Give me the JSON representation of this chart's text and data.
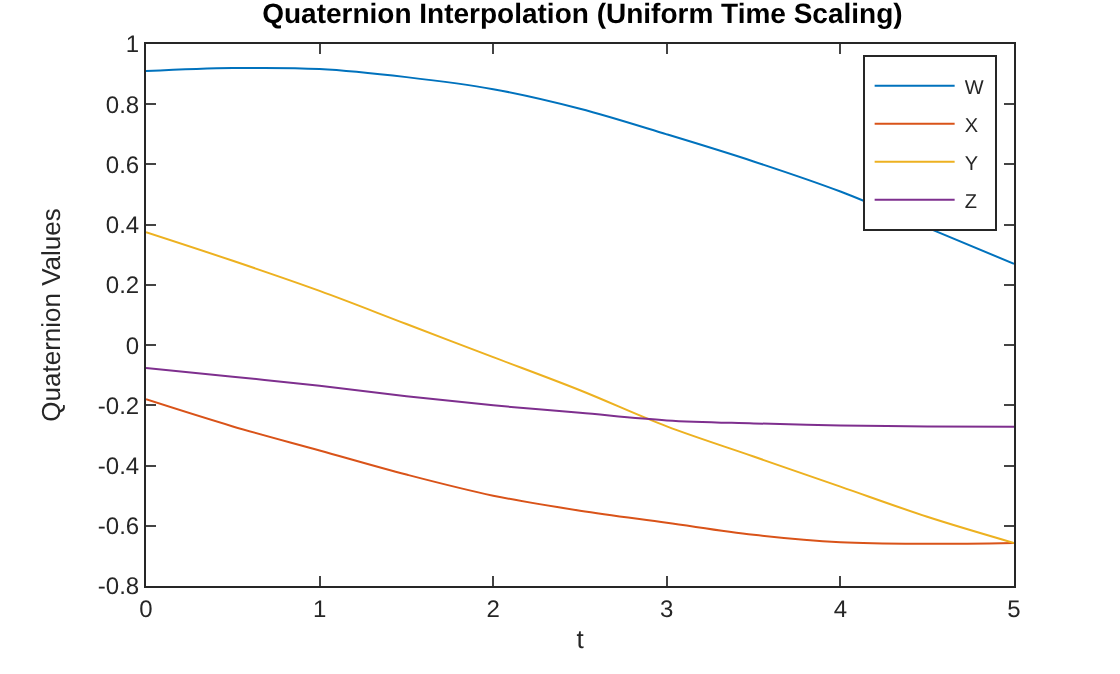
{
  "chart_data": {
    "type": "line",
    "title": "Quaternion Interpolation (Uniform Time Scaling)",
    "xlabel": "t",
    "ylabel": "Quaternion Values",
    "x": [
      0,
      0.5,
      1,
      1.5,
      2,
      2.5,
      3,
      3.5,
      4,
      4.5,
      5
    ],
    "series": [
      {
        "name": "W",
        "color": "#0072bd",
        "values": [
          0.91,
          0.92,
          0.917,
          0.89,
          0.85,
          0.785,
          0.7,
          0.61,
          0.51,
          0.39,
          0.27
        ]
      },
      {
        "name": "X",
        "color": "#d95319",
        "values": [
          -0.18,
          -0.27,
          -0.35,
          -0.43,
          -0.5,
          -0.55,
          -0.59,
          -0.63,
          -0.655,
          -0.66,
          -0.657
        ]
      },
      {
        "name": "Y",
        "color": "#edb120",
        "values": [
          0.375,
          0.28,
          0.18,
          0.07,
          -0.04,
          -0.15,
          -0.27,
          -0.37,
          -0.47,
          -0.57,
          -0.657
        ]
      },
      {
        "name": "Z",
        "color": "#7e2f8e",
        "values": [
          -0.076,
          -0.105,
          -0.135,
          -0.17,
          -0.2,
          -0.225,
          -0.25,
          -0.26,
          -0.267,
          -0.27,
          -0.271
        ]
      }
    ],
    "xlim": [
      0,
      5
    ],
    "xticks": [
      0,
      1,
      2,
      3,
      4,
      5
    ],
    "ylim": [
      -0.8,
      1
    ],
    "yticks": [
      -0.8,
      -0.6,
      -0.4,
      -0.2,
      0,
      0.2,
      0.4,
      0.6,
      0.8,
      1
    ],
    "legend": "top right",
    "marker": "none",
    "line_style": "solid"
  }
}
